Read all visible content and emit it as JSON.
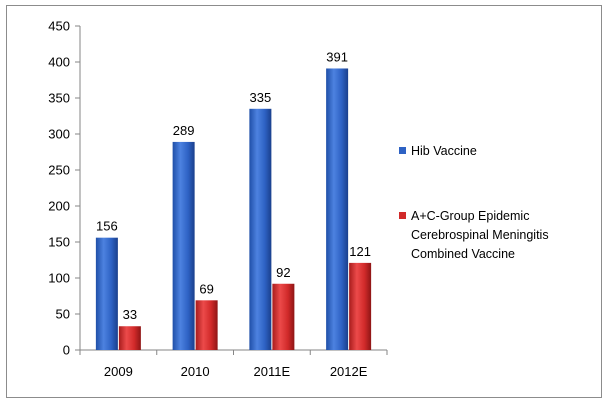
{
  "chart_data": {
    "type": "bar",
    "title": "",
    "xlabel": "",
    "ylabel": "",
    "categories": [
      "2009",
      "2010",
      "2011E",
      "2012E"
    ],
    "ylim": [
      0,
      450
    ],
    "yticks": [
      0,
      50,
      100,
      150,
      200,
      250,
      300,
      350,
      400,
      450
    ],
    "grid": false,
    "legend_position": "right",
    "series": [
      {
        "name": "Hib Vaccine",
        "color": "#2e62c4",
        "values": [
          156,
          289,
          335,
          391
        ]
      },
      {
        "name": "A+C-Group Epidemic Cerebrospinal Meningitis Combined Vaccine",
        "legend_lines": [
          "A+C-Group Epidemic",
          "Cerebrospinal Meningitis",
          "Combined Vaccine"
        ],
        "color": "#d12a2a",
        "values": [
          33,
          69,
          92,
          121
        ]
      }
    ]
  }
}
